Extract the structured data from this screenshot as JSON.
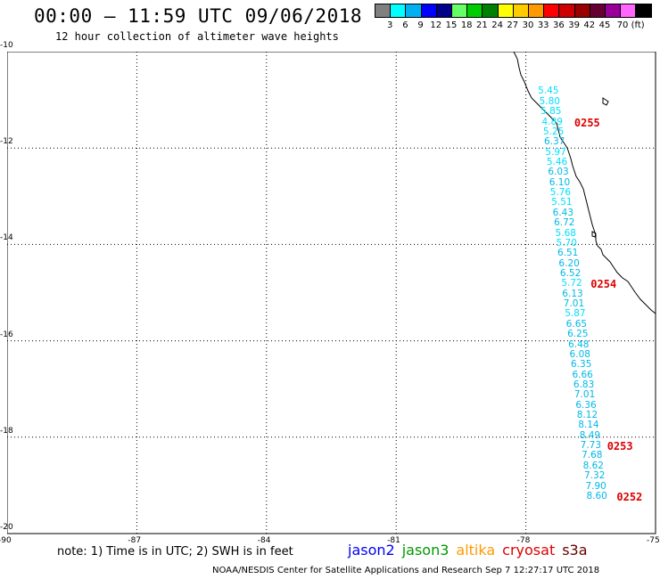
{
  "header": {
    "title": "00:00 – 11:59 UTC 09/06/2018",
    "subtitle": "12 hour collection of altimeter wave heights"
  },
  "colorbar": {
    "colors": [
      "#808080",
      "#00ffff",
      "#00b0f0",
      "#0000ff",
      "#00008b",
      "#66ff66",
      "#00cc00",
      "#008000",
      "#ffff00",
      "#ffcc00",
      "#ff9900",
      "#ff0000",
      "#cc0000",
      "#990000",
      "#660033",
      "#990099",
      "#ff66ff",
      "#000000"
    ],
    "labels": [
      "3",
      "6",
      "9",
      "12",
      "15",
      "18",
      "21",
      "24",
      "27",
      "30",
      "33",
      "36",
      "39",
      "42",
      "45",
      "70 (ft)"
    ]
  },
  "axes": {
    "x_ticks": [
      "-90",
      "-87",
      "-84",
      "-81",
      "-78",
      "-75"
    ],
    "y_ticks": [
      "-10",
      "-12",
      "-14",
      "-16",
      "-18",
      "-20"
    ],
    "lon_range": [
      -90,
      -75
    ],
    "lat_range": [
      -20,
      -10
    ]
  },
  "wave_heights": [
    {
      "lat": -10.73,
      "lon": -77.72,
      "value": "5.45",
      "color": "#00e0ff"
    },
    {
      "lat": -10.94,
      "lon": -77.69,
      "value": "5.80",
      "color": "#00e0ff"
    },
    {
      "lat": -11.15,
      "lon": -77.66,
      "value": "5.85",
      "color": "#00e0ff"
    },
    {
      "lat": -11.36,
      "lon": -77.63,
      "value": "4.89",
      "color": "#00e0ff"
    },
    {
      "lat": -11.57,
      "lon": -77.6,
      "value": "5.25",
      "color": "#00e0ff"
    },
    {
      "lat": -11.78,
      "lon": -77.58,
      "value": "6.37",
      "color": "#00b8e8"
    },
    {
      "lat": -11.99,
      "lon": -77.55,
      "value": "5.97",
      "color": "#00e0ff"
    },
    {
      "lat": -12.2,
      "lon": -77.52,
      "value": "5.46",
      "color": "#00e0ff"
    },
    {
      "lat": -12.41,
      "lon": -77.49,
      "value": "6.03",
      "color": "#00b8e8"
    },
    {
      "lat": -12.62,
      "lon": -77.46,
      "value": "6.10",
      "color": "#00b8e8"
    },
    {
      "lat": -12.83,
      "lon": -77.44,
      "value": "5.76",
      "color": "#00e0ff"
    },
    {
      "lat": -13.04,
      "lon": -77.41,
      "value": "5.51",
      "color": "#00e0ff"
    },
    {
      "lat": -13.25,
      "lon": -77.38,
      "value": "6.43",
      "color": "#00b8e8"
    },
    {
      "lat": -13.46,
      "lon": -77.35,
      "value": "6.72",
      "color": "#00b8e8"
    },
    {
      "lat": -13.67,
      "lon": -77.32,
      "value": "5.68",
      "color": "#00e0ff"
    },
    {
      "lat": -13.88,
      "lon": -77.3,
      "value": "5.70",
      "color": "#00e0ff"
    },
    {
      "lat": -14.09,
      "lon": -77.27,
      "value": "6.51",
      "color": "#00b8e8"
    },
    {
      "lat": -14.3,
      "lon": -77.24,
      "value": "6.20",
      "color": "#00b8e8"
    },
    {
      "lat": -14.51,
      "lon": -77.21,
      "value": "6.52",
      "color": "#00b8e8"
    },
    {
      "lat": -14.72,
      "lon": -77.18,
      "value": "5.72",
      "color": "#00e0ff"
    },
    {
      "lat": -14.93,
      "lon": -77.16,
      "value": "6.13",
      "color": "#00b8e8"
    },
    {
      "lat": -15.14,
      "lon": -77.13,
      "value": "7.01",
      "color": "#00b8e8"
    },
    {
      "lat": -15.35,
      "lon": -77.1,
      "value": "5.87",
      "color": "#00e0ff"
    },
    {
      "lat": -15.56,
      "lon": -77.07,
      "value": "6.65",
      "color": "#00b8e8"
    },
    {
      "lat": -15.77,
      "lon": -77.04,
      "value": "6.25",
      "color": "#00b8e8"
    },
    {
      "lat": -15.98,
      "lon": -77.02,
      "value": "6.48",
      "color": "#00b8e8"
    },
    {
      "lat": -16.19,
      "lon": -76.99,
      "value": "6.08",
      "color": "#00b8e8"
    },
    {
      "lat": -16.4,
      "lon": -76.96,
      "value": "6.35",
      "color": "#00b8e8"
    },
    {
      "lat": -16.61,
      "lon": -76.93,
      "value": "6.66",
      "color": "#00b8e8"
    },
    {
      "lat": -16.82,
      "lon": -76.9,
      "value": "6.83",
      "color": "#00b8e8"
    },
    {
      "lat": -17.03,
      "lon": -76.88,
      "value": "7.01",
      "color": "#00b8e8"
    },
    {
      "lat": -17.24,
      "lon": -76.85,
      "value": "6.36",
      "color": "#00b8e8"
    },
    {
      "lat": -17.45,
      "lon": -76.82,
      "value": "8.12",
      "color": "#00b8e8"
    },
    {
      "lat": -17.66,
      "lon": -76.79,
      "value": "8.14",
      "color": "#00b8e8"
    },
    {
      "lat": -17.87,
      "lon": -76.76,
      "value": "8.49",
      "color": "#00b8e8"
    },
    {
      "lat": -18.08,
      "lon": -76.74,
      "value": "7.73",
      "color": "#00b8e8"
    },
    {
      "lat": -18.29,
      "lon": -76.71,
      "value": "7.68",
      "color": "#00b8e8"
    },
    {
      "lat": -18.5,
      "lon": -76.68,
      "value": "8.62",
      "color": "#00b8e8"
    },
    {
      "lat": -18.71,
      "lon": -76.65,
      "value": "7.32",
      "color": "#00b8e8"
    },
    {
      "lat": -18.92,
      "lon": -76.62,
      "value": "7.90",
      "color": "#00b8e8"
    },
    {
      "lat": -19.13,
      "lon": -76.6,
      "value": "8.60",
      "color": "#00b8e8"
    }
  ],
  "time_labels": [
    {
      "lat": -11.36,
      "lon": -76.88,
      "value": "0255"
    },
    {
      "lat": -14.72,
      "lon": -76.5,
      "value": "0254"
    },
    {
      "lat": -18.08,
      "lon": -76.12,
      "value": "0253"
    },
    {
      "lat": -19.13,
      "lon": -75.9,
      "value": "0252"
    }
  ],
  "note": "note: 1) Time is in UTC; 2) SWH is in feet",
  "legend": [
    {
      "label": "jason2",
      "color": "#0000ee"
    },
    {
      "label": "jason3",
      "color": "#009900"
    },
    {
      "label": "altika",
      "color": "#ff9900"
    },
    {
      "label": "cryosat",
      "color": "#dd0000"
    },
    {
      "label": "s3a",
      "color": "#660000"
    }
  ],
  "footer": "NOAA/NESDIS Center for Satellite Applications and Research    Sep  7 12:27:17 UTC 2018"
}
